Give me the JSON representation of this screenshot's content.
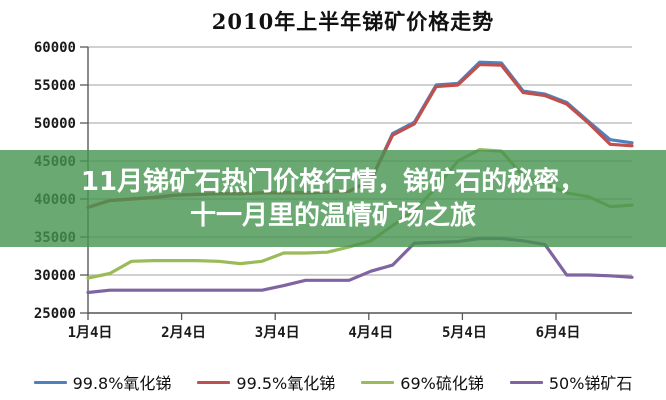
{
  "overlay": {
    "line1": "11月锑矿石热门价格行情，锑矿石的秘密，",
    "line2": "十一月里的温情矿场之旅",
    "background_color": "#469450",
    "text_color": "#ffffff"
  },
  "chart_data": {
    "type": "line",
    "title": "2010年上半年锑矿价格走势",
    "xlabel": "",
    "ylabel": "",
    "ylim": [
      25000,
      60000
    ],
    "y_ticks": [
      25000,
      30000,
      35000,
      40000,
      45000,
      50000,
      55000,
      60000
    ],
    "x_tick_labels": [
      "1月4日",
      "2月4日",
      "3月4日",
      "4月4日",
      "5月4日",
      "6月4日"
    ],
    "grid": true,
    "legend_position": "bottom",
    "axis_color": "#595959",
    "gridline_color": "#b3b3b3",
    "series": [
      {
        "name": "99.8%氧化锑",
        "color": "#4f81bd",
        "values": [
          38900,
          39800,
          40000,
          40200,
          40500,
          40600,
          40700,
          40700,
          40800,
          40800,
          40800,
          40900,
          41000,
          42500,
          48600,
          50100,
          55000,
          55200,
          58000,
          57900,
          54200,
          53800,
          52700,
          50200,
          47800,
          47400
        ]
      },
      {
        "name": "99.5%氧化锑",
        "color": "#c0504d",
        "values": [
          38900,
          39800,
          40000,
          40200,
          40500,
          40600,
          40700,
          40700,
          40800,
          40800,
          40800,
          40900,
          41000,
          42500,
          48400,
          49900,
          54800,
          55000,
          57700,
          57600,
          54000,
          53600,
          52500,
          50000,
          47200,
          47000
        ]
      },
      {
        "name": "69%硫化锑",
        "color": "#9bbb59",
        "values": [
          29600,
          30200,
          31800,
          31900,
          31900,
          31900,
          31800,
          31500,
          31800,
          32900,
          32900,
          33000,
          33700,
          34500,
          36500,
          38500,
          41500,
          45000,
          46500,
          46300,
          43000,
          42000,
          40800,
          40300,
          39000,
          39200
        ]
      },
      {
        "name": "50%锑矿石",
        "color": "#8064a2",
        "values": [
          27700,
          28000,
          28000,
          28000,
          28000,
          28000,
          28000,
          28000,
          28000,
          28600,
          29300,
          29300,
          29300,
          30500,
          31300,
          34200,
          34300,
          34400,
          34800,
          34800,
          34500,
          34000,
          30000,
          30000,
          29900,
          29700
        ]
      }
    ]
  }
}
